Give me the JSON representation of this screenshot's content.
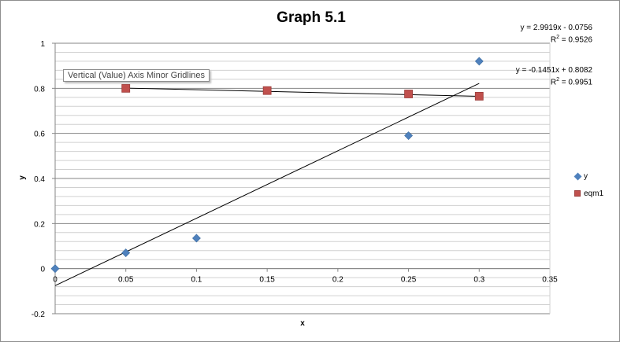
{
  "chart_data": {
    "type": "scatter",
    "title": "Graph 5.1",
    "xlabel": "x",
    "ylabel": "y",
    "xlim": [
      0,
      0.35
    ],
    "ylim": [
      -0.2,
      1
    ],
    "x_ticks": [
      "0",
      "0.05",
      "0.1",
      "0.15",
      "0.2",
      "0.25",
      "0.3",
      "0.35"
    ],
    "y_ticks": [
      "-0.2",
      "0",
      "0.2",
      "0.4",
      "0.6",
      "0.8",
      "1"
    ],
    "x_tick_values": [
      0,
      0.05,
      0.1,
      0.15,
      0.2,
      0.25,
      0.3,
      0.35
    ],
    "y_tick_values": [
      -0.2,
      0,
      0.2,
      0.4,
      0.6,
      0.8,
      1
    ],
    "minor_y_step": 0.04,
    "grid": true,
    "legend_position": "right",
    "series": [
      {
        "name": "y",
        "marker": "diamond",
        "color": "#4f81bd",
        "x": [
          0,
          0.05,
          0.1,
          0.25,
          0.3
        ],
        "y": [
          0,
          0.07,
          0.135,
          0.59,
          0.92
        ],
        "trendline": {
          "slope": 2.9919,
          "intercept": -0.0756,
          "x_range": [
            0,
            0.3
          ]
        }
      },
      {
        "name": "eqm1",
        "marker": "square",
        "color": "#c0504d",
        "x": [
          0.05,
          0.15,
          0.25,
          0.3
        ],
        "y": [
          0.8,
          0.79,
          0.775,
          0.765
        ],
        "trendline": {
          "slope": -0.1451,
          "intercept": 0.8082,
          "x_range": [
            0.05,
            0.3
          ]
        }
      }
    ],
    "annotations": {
      "eq1": "y = 2.9919x - 0.0756",
      "r2_1_prefix": "R",
      "r2_1_value": " = 0.9526",
      "eq2": "y = -0.1451x + 0.8082",
      "r2_2_prefix": "R",
      "r2_2_value": " = 0.9951",
      "superscript": "2"
    },
    "tooltip": "Vertical (Value) Axis Minor Gridlines"
  },
  "colors": {
    "axis": "#868686",
    "major_grid": "#868686",
    "minor_grid": "#d0d0d0",
    "trendline": "#000000"
  }
}
